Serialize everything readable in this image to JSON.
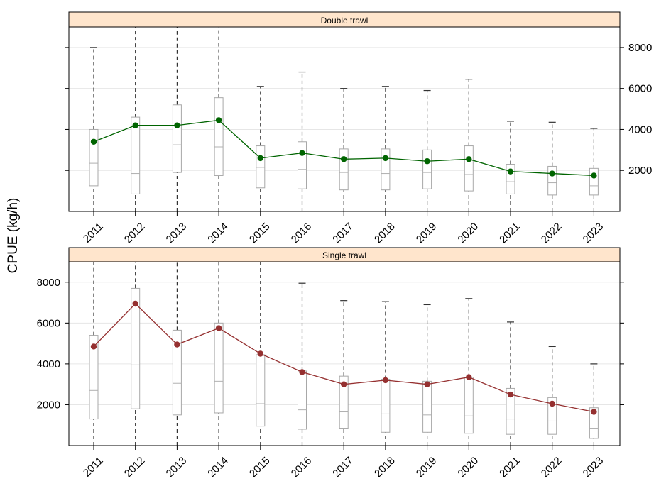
{
  "chart_data": {
    "type": "box",
    "ylabel": "CPUE (kg/h)",
    "categories": [
      "2011",
      "2012",
      "2013",
      "2014",
      "2015",
      "2016",
      "2017",
      "2018",
      "2019",
      "2020",
      "2021",
      "2022",
      "2023"
    ],
    "ylim": [
      0,
      9000
    ],
    "yticks": [
      2000,
      4000,
      6000,
      8000
    ],
    "grid": true,
    "panels": [
      {
        "name": "Double trawl",
        "y_axis_side": "right",
        "mean_color": "#006400",
        "mean_values": [
          3400,
          4200,
          4200,
          4450,
          2600,
          2850,
          2550,
          2600,
          2450,
          2550,
          1950,
          1850,
          1750
        ],
        "boxes": [
          {
            "q1": 1250,
            "median": 2350,
            "q3": 4000,
            "whisker_high": 8000
          },
          {
            "q1": 850,
            "median": 1850,
            "q3": 4600,
            "whisker_high": 9000
          },
          {
            "q1": 1900,
            "median": 3250,
            "q3": 5200,
            "whisker_high": 9000
          },
          {
            "q1": 1750,
            "median": 3150,
            "q3": 5550,
            "whisker_high": 9000
          },
          {
            "q1": 1150,
            "median": 2150,
            "q3": 3200,
            "whisker_high": 6100
          },
          {
            "q1": 1100,
            "median": 2050,
            "q3": 3400,
            "whisker_high": 6800
          },
          {
            "q1": 1050,
            "median": 1900,
            "q3": 3050,
            "whisker_high": 6000
          },
          {
            "q1": 1050,
            "median": 1850,
            "q3": 3050,
            "whisker_high": 6100
          },
          {
            "q1": 1100,
            "median": 1900,
            "q3": 3000,
            "whisker_high": 5900
          },
          {
            "q1": 1000,
            "median": 1800,
            "q3": 3200,
            "whisker_high": 6450
          },
          {
            "q1": 850,
            "median": 1450,
            "q3": 2300,
            "whisker_high": 4400
          },
          {
            "q1": 800,
            "median": 1400,
            "q3": 2200,
            "whisker_high": 4350
          },
          {
            "q1": 800,
            "median": 1250,
            "q3": 2100,
            "whisker_high": 4050
          }
        ]
      },
      {
        "name": "Single trawl",
        "y_axis_side": "left",
        "mean_color": "#953030",
        "mean_values": [
          4850,
          6950,
          4950,
          5750,
          4500,
          3600,
          3000,
          3200,
          3000,
          3350,
          2500,
          2050,
          1650
        ],
        "boxes": [
          {
            "q1": 1300,
            "median": 2700,
            "q3": 5400,
            "whisker_high": 9000
          },
          {
            "q1": 1800,
            "median": 3950,
            "q3": 7700,
            "whisker_high": 9000
          },
          {
            "q1": 1500,
            "median": 3050,
            "q3": 5650,
            "whisker_high": 9000
          },
          {
            "q1": 1600,
            "median": 3150,
            "q3": 6000,
            "whisker_high": 9000
          },
          {
            "q1": 950,
            "median": 2050,
            "q3": 4450,
            "whisker_high": 9000
          },
          {
            "q1": 800,
            "median": 1750,
            "q3": 3650,
            "whisker_high": 7950
          },
          {
            "q1": 850,
            "median": 1650,
            "q3": 3400,
            "whisker_high": 7100
          },
          {
            "q1": 650,
            "median": 1550,
            "q3": 3250,
            "whisker_high": 7050
          },
          {
            "q1": 650,
            "median": 1500,
            "q3": 3150,
            "whisker_high": 6900
          },
          {
            "q1": 600,
            "median": 1450,
            "q3": 3350,
            "whisker_high": 7200
          },
          {
            "q1": 550,
            "median": 1300,
            "q3": 2800,
            "whisker_high": 6050
          },
          {
            "q1": 550,
            "median": 1200,
            "q3": 2350,
            "whisker_high": 4850
          },
          {
            "q1": 350,
            "median": 850,
            "q3": 1850,
            "whisker_high": 4000
          }
        ]
      }
    ]
  }
}
